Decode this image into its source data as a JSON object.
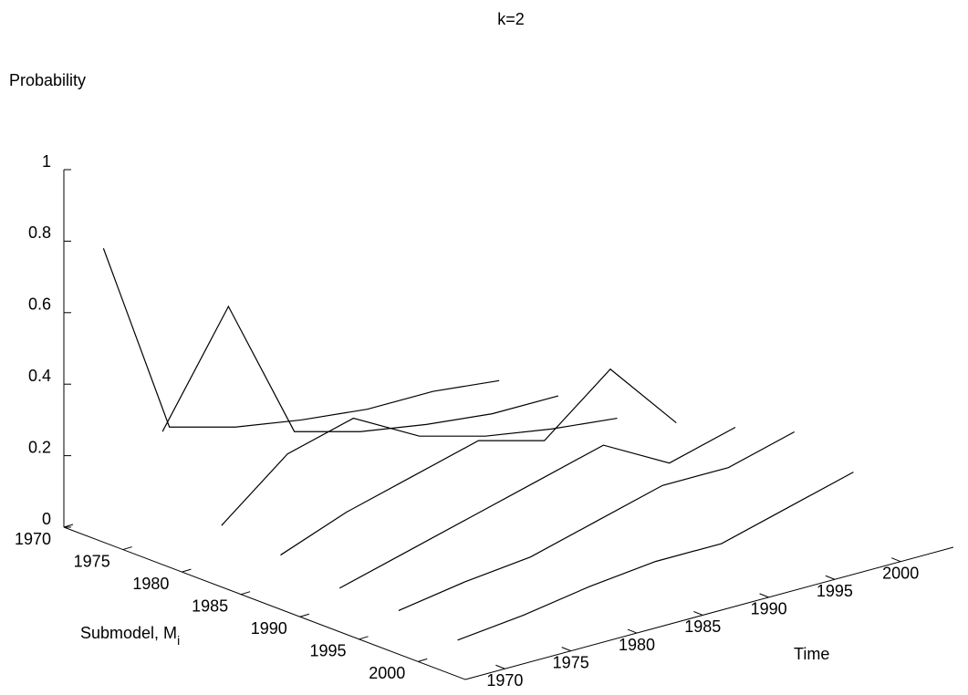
{
  "chart_data": {
    "type": "surface3d",
    "title": "k=2",
    "z_label": "Probability",
    "x_label": "Submodel, M",
    "x_label_sub": "i",
    "y_label": "Time",
    "x": [
      1970,
      1975,
      1980,
      1985,
      1990,
      1995,
      2000
    ],
    "y": [
      1970,
      1975,
      1980,
      1985,
      1990,
      1995,
      2000
    ],
    "z": [
      [
        0.75,
        0.2,
        0.15,
        0.12,
        0.1,
        0.1,
        0.08
      ],
      [
        0.3,
        0.6,
        0.2,
        0.15,
        0.12,
        0.1,
        0.1
      ],
      [
        0.1,
        0.25,
        0.3,
        0.2,
        0.15,
        0.12,
        0.1
      ],
      [
        0.08,
        0.15,
        0.2,
        0.25,
        0.2,
        0.35,
        0.15
      ],
      [
        0.05,
        0.1,
        0.15,
        0.2,
        0.25,
        0.15,
        0.2
      ],
      [
        0.05,
        0.08,
        0.1,
        0.15,
        0.2,
        0.2,
        0.25
      ],
      [
        0.03,
        0.05,
        0.08,
        0.1,
        0.1,
        0.15,
        0.2
      ]
    ],
    "color": "#000000",
    "xlim": [
      1970,
      2004
    ],
    "ylim": [
      1967,
      2004
    ],
    "zlim": [
      0,
      1
    ],
    "xticks": [
      1970,
      1975,
      1980,
      1985,
      1990,
      1995,
      2000
    ],
    "yticks": [
      1970,
      1975,
      1980,
      1985,
      1990,
      1995,
      2000
    ],
    "zticks": [
      0,
      0.2,
      0.4,
      0.6,
      0.8,
      1
    ]
  }
}
